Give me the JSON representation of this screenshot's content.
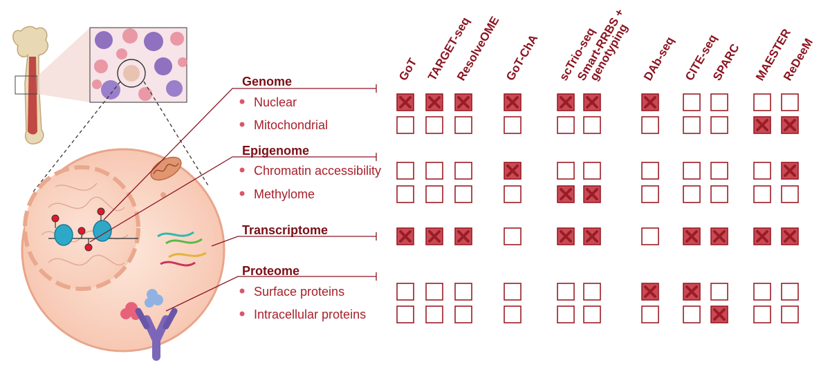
{
  "categories": [
    {
      "label": "Genome",
      "items": [
        "Nuclear",
        "Mitochondrial"
      ]
    },
    {
      "label": "Epigenome",
      "items": [
        "Chromatin accessibility",
        "Methylome"
      ]
    },
    {
      "label": "Transcriptome",
      "items": []
    },
    {
      "label": "Proteome",
      "items": [
        "Surface proteins",
        "Intracellular proteins"
      ]
    }
  ],
  "methods": [
    {
      "lines": [
        "GoT"
      ]
    },
    {
      "lines": [
        "TARGET-seq"
      ]
    },
    {
      "lines": [
        "ResolveOME"
      ]
    },
    {
      "lines": [
        "GoT-ChA"
      ]
    },
    {
      "lines": [
        "scTrio-seq"
      ]
    },
    {
      "lines": [
        "Smart-RRBS +",
        "genotyping"
      ]
    },
    {
      "lines": [
        "DAb-seq"
      ]
    },
    {
      "lines": [
        "CITE-seq"
      ]
    },
    {
      "lines": [
        "SPARC"
      ]
    },
    {
      "lines": [
        "MAESTER"
      ]
    },
    {
      "lines": [
        "ReDeeM"
      ]
    }
  ],
  "row_order": [
    "Nuclear",
    "Mitochondrial",
    "Chromatin accessibility",
    "Methylome",
    "Transcriptome",
    "Surface proteins",
    "Intracellular proteins"
  ],
  "matrix": [
    [
      1,
      1,
      1,
      1,
      1,
      1,
      1,
      0,
      0,
      0,
      0
    ],
    [
      0,
      0,
      0,
      0,
      0,
      0,
      0,
      0,
      0,
      1,
      1
    ],
    [
      0,
      0,
      0,
      1,
      0,
      0,
      0,
      0,
      0,
      0,
      1
    ],
    [
      0,
      0,
      0,
      0,
      1,
      1,
      0,
      0,
      0,
      0,
      0
    ],
    [
      1,
      1,
      1,
      0,
      1,
      1,
      0,
      1,
      1,
      1,
      1
    ],
    [
      0,
      0,
      0,
      0,
      0,
      0,
      1,
      1,
      0,
      0,
      0
    ],
    [
      0,
      0,
      0,
      0,
      0,
      0,
      0,
      0,
      1,
      0,
      0
    ]
  ],
  "colors": {
    "accent": "#9a1c24",
    "text": "#a81f2b",
    "heading": "#7a0f16"
  }
}
